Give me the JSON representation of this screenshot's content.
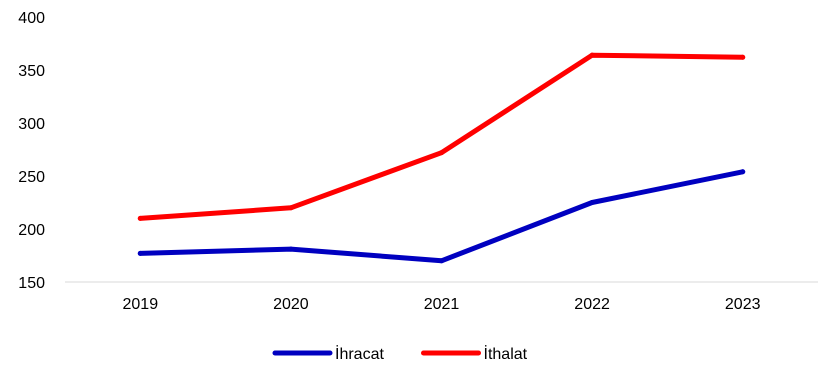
{
  "chart_data": {
    "type": "line",
    "title": "",
    "xlabel": "",
    "ylabel": "",
    "categories": [
      "2019",
      "2020",
      "2021",
      "2022",
      "2023"
    ],
    "ylim": [
      150,
      400
    ],
    "yticks": [
      "150",
      "200",
      "250",
      "300",
      "350",
      "400"
    ],
    "grid": false,
    "legend_position": "bottom",
    "series": [
      {
        "name": "İhracat",
        "color": "#0000c0",
        "values": [
          177,
          181,
          170,
          225,
          254
        ]
      },
      {
        "name": "İthalat",
        "color": "#ff0000",
        "values": [
          210,
          220,
          272,
          364,
          362
        ]
      }
    ]
  }
}
